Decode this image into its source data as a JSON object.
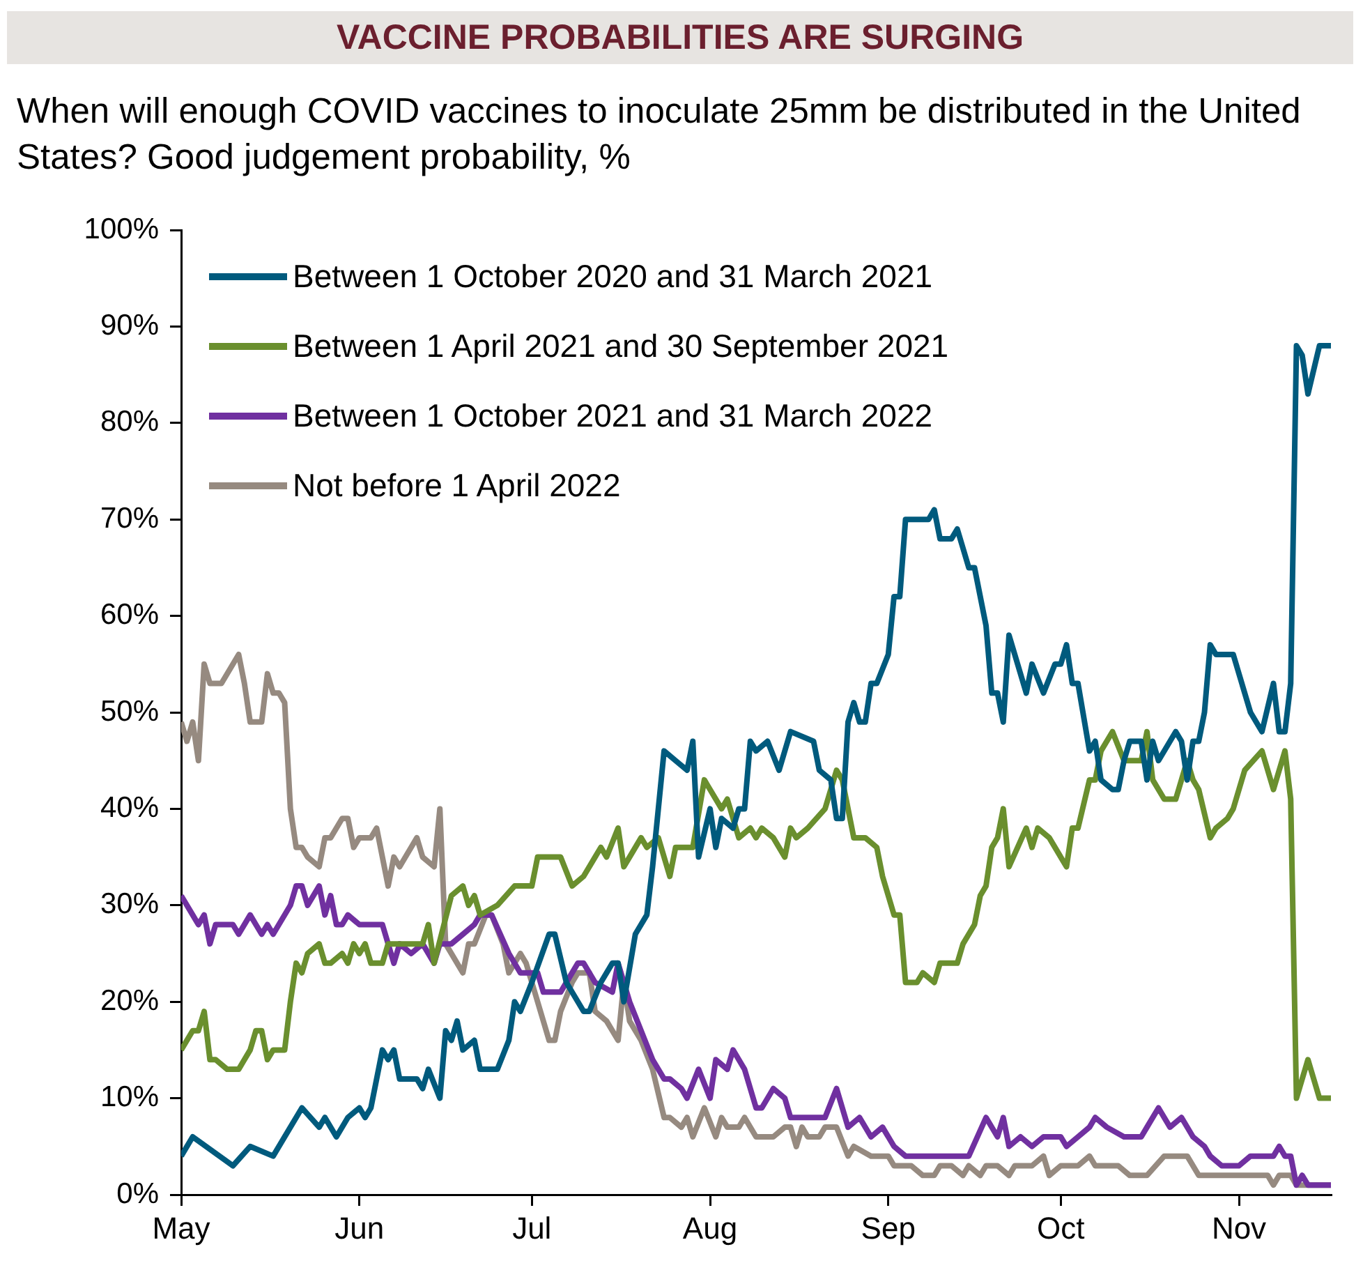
{
  "chart_data": {
    "type": "line",
    "title": "VACCINE PROBABILITIES ARE SURGING",
    "subtitle": "When will enough COVID vaccines to inoculate 25mm be distributed in the United States? Good judgement probability, %",
    "xlim": [
      "2020-05-01",
      "2020-11-17"
    ],
    "xticks": [
      {
        "value": "2020-05-01",
        "label": "May"
      },
      {
        "value": "2020-06-01",
        "label": "Jun"
      },
      {
        "value": "2020-07-01",
        "label": "Jul"
      },
      {
        "value": "2020-08-01",
        "label": "Aug"
      },
      {
        "value": "2020-09-01",
        "label": "Sep"
      },
      {
        "value": "2020-10-01",
        "label": "Oct"
      },
      {
        "value": "2020-11-01",
        "label": "Nov"
      }
    ],
    "ylim": [
      0,
      100
    ],
    "yticks": [
      {
        "value": 0,
        "label": "0%"
      },
      {
        "value": 10,
        "label": "10%"
      },
      {
        "value": 20,
        "label": "20%"
      },
      {
        "value": 30,
        "label": "30%"
      },
      {
        "value": 40,
        "label": "40%"
      },
      {
        "value": 50,
        "label": "50%"
      },
      {
        "value": 60,
        "label": "60%"
      },
      {
        "value": 70,
        "label": "70%"
      },
      {
        "value": 80,
        "label": "80%"
      },
      {
        "value": 90,
        "label": "90%"
      },
      {
        "value": 100,
        "label": "100%"
      }
    ],
    "grid": false,
    "legend": "top left",
    "marker": "none",
    "line_style": "solid",
    "series": [
      {
        "name": "Between 1 October 2020 and 31 March 2021",
        "color": "#005a7d",
        "x": [
          "2020-05-01",
          "2020-05-03",
          "2020-05-10",
          "2020-05-13",
          "2020-05-17",
          "2020-05-20",
          "2020-05-22",
          "2020-05-25",
          "2020-05-26",
          "2020-05-28",
          "2020-05-30",
          "2020-06-01",
          "2020-06-02",
          "2020-06-03",
          "2020-06-05",
          "2020-06-06",
          "2020-06-07",
          "2020-06-08",
          "2020-06-11",
          "2020-06-12",
          "2020-06-13",
          "2020-06-15",
          "2020-06-16",
          "2020-06-17",
          "2020-06-18",
          "2020-06-19",
          "2020-06-21",
          "2020-06-22",
          "2020-06-25",
          "2020-06-27",
          "2020-06-28",
          "2020-06-29",
          "2020-07-01",
          "2020-07-04",
          "2020-07-05",
          "2020-07-07",
          "2020-07-10",
          "2020-07-11",
          "2020-07-13",
          "2020-07-15",
          "2020-07-16",
          "2020-07-17",
          "2020-07-19",
          "2020-07-21",
          "2020-07-22",
          "2020-07-24",
          "2020-07-26",
          "2020-07-28",
          "2020-07-29",
          "2020-07-30",
          "2020-08-01",
          "2020-08-02",
          "2020-08-03",
          "2020-08-05",
          "2020-08-06",
          "2020-08-07",
          "2020-08-08",
          "2020-08-09",
          "2020-08-11",
          "2020-08-13",
          "2020-08-15",
          "2020-08-19",
          "2020-08-20",
          "2020-08-22",
          "2020-08-23",
          "2020-08-24",
          "2020-08-25",
          "2020-08-26",
          "2020-08-27",
          "2020-08-28",
          "2020-08-29",
          "2020-08-30",
          "2020-09-01",
          "2020-09-02",
          "2020-09-03",
          "2020-09-04",
          "2020-09-08",
          "2020-09-09",
          "2020-09-10",
          "2020-09-12",
          "2020-09-13",
          "2020-09-14",
          "2020-09-15",
          "2020-09-16",
          "2020-09-18",
          "2020-09-19",
          "2020-09-20",
          "2020-09-21",
          "2020-09-22",
          "2020-09-25",
          "2020-09-26",
          "2020-09-28",
          "2020-09-30",
          "2020-10-01",
          "2020-10-02",
          "2020-10-03",
          "2020-10-04",
          "2020-10-06",
          "2020-10-07",
          "2020-10-08",
          "2020-10-10",
          "2020-10-11",
          "2020-10-12",
          "2020-10-13",
          "2020-10-15",
          "2020-10-16",
          "2020-10-17",
          "2020-10-18",
          "2020-10-21",
          "2020-10-22",
          "2020-10-23",
          "2020-10-24",
          "2020-10-25",
          "2020-10-26",
          "2020-10-27",
          "2020-10-28",
          "2020-10-31",
          "2020-11-01",
          "2020-11-03",
          "2020-11-05",
          "2020-11-07",
          "2020-11-08",
          "2020-11-09",
          "2020-11-10",
          "2020-11-11",
          "2020-11-12",
          "2020-11-13",
          "2020-11-15",
          "2020-11-17"
        ],
        "values": [
          4,
          6,
          3,
          5,
          4,
          7,
          9,
          7,
          8,
          6,
          8,
          9,
          8,
          9,
          15,
          14,
          15,
          12,
          12,
          11,
          13,
          10,
          17,
          16,
          18,
          15,
          16,
          13,
          13,
          16,
          20,
          19,
          22,
          27,
          27,
          22,
          19,
          19,
          22,
          24,
          24,
          20,
          27,
          29,
          34,
          46,
          45,
          44,
          47,
          35,
          40,
          36,
          39,
          38,
          40,
          40,
          47,
          46,
          47,
          44,
          48,
          47,
          44,
          43,
          39,
          39,
          49,
          51,
          49,
          49,
          53,
          53,
          56,
          62,
          62,
          70,
          70,
          71,
          68,
          68,
          69,
          67,
          65,
          65,
          59,
          52,
          52,
          49,
          58,
          52,
          55,
          52,
          55,
          55,
          57,
          53,
          53,
          46,
          47,
          43,
          42,
          42,
          45,
          47,
          47,
          43,
          47,
          45,
          48,
          47,
          43,
          47,
          47,
          50,
          57,
          56,
          56,
          54,
          50,
          48,
          53,
          48,
          48,
          53,
          88,
          87,
          83,
          88,
          88
        ]
      },
      {
        "name": "Between 1 April 2021 and 30 September 2021",
        "color": "#6a8f2e",
        "x": [
          "2020-05-01",
          "2020-05-03",
          "2020-05-04",
          "2020-05-05",
          "2020-05-06",
          "2020-05-07",
          "2020-05-09",
          "2020-05-11",
          "2020-05-13",
          "2020-05-14",
          "2020-05-15",
          "2020-05-16",
          "2020-05-17",
          "2020-05-19",
          "2020-05-20",
          "2020-05-21",
          "2020-05-22",
          "2020-05-23",
          "2020-05-25",
          "2020-05-26",
          "2020-05-27",
          "2020-05-29",
          "2020-05-30",
          "2020-05-31",
          "2020-06-01",
          "2020-06-02",
          "2020-06-03",
          "2020-06-05",
          "2020-06-06",
          "2020-06-08",
          "2020-06-09",
          "2020-06-11",
          "2020-06-12",
          "2020-06-13",
          "2020-06-14",
          "2020-06-17",
          "2020-06-19",
          "2020-06-20",
          "2020-06-21",
          "2020-06-22",
          "2020-06-25",
          "2020-06-28",
          "2020-07-01",
          "2020-07-02",
          "2020-07-06",
          "2020-07-08",
          "2020-07-10",
          "2020-07-12",
          "2020-07-13",
          "2020-07-14",
          "2020-07-16",
          "2020-07-17",
          "2020-07-18",
          "2020-07-20",
          "2020-07-21",
          "2020-07-23",
          "2020-07-25",
          "2020-07-26",
          "2020-07-29",
          "2020-07-31",
          "2020-08-01",
          "2020-08-03",
          "2020-08-04",
          "2020-08-06",
          "2020-08-08",
          "2020-08-09",
          "2020-08-10",
          "2020-08-12",
          "2020-08-14",
          "2020-08-15",
          "2020-08-16",
          "2020-08-18",
          "2020-08-21",
          "2020-08-23",
          "2020-08-24",
          "2020-08-25",
          "2020-08-26",
          "2020-08-28",
          "2020-08-30",
          "2020-08-31",
          "2020-09-02",
          "2020-09-03",
          "2020-09-04",
          "2020-09-06",
          "2020-09-07",
          "2020-09-09",
          "2020-09-10",
          "2020-09-13",
          "2020-09-14",
          "2020-09-16",
          "2020-09-17",
          "2020-09-18",
          "2020-09-19",
          "2020-09-20",
          "2020-09-21",
          "2020-09-22",
          "2020-09-25",
          "2020-09-26",
          "2020-09-27",
          "2020-09-29",
          "2020-10-02",
          "2020-10-03",
          "2020-10-04",
          "2020-10-06",
          "2020-10-07",
          "2020-10-08",
          "2020-10-10",
          "2020-10-12",
          "2020-10-15",
          "2020-10-16",
          "2020-10-17",
          "2020-10-19",
          "2020-10-21",
          "2020-10-22",
          "2020-10-23",
          "2020-10-24",
          "2020-10-25",
          "2020-10-27",
          "2020-10-28",
          "2020-10-30",
          "2020-10-31",
          "2020-11-02",
          "2020-11-05",
          "2020-11-07",
          "2020-11-09",
          "2020-11-10",
          "2020-11-11",
          "2020-11-13",
          "2020-11-15",
          "2020-11-17"
        ],
        "values": [
          15,
          17,
          17,
          19,
          14,
          14,
          13,
          13,
          15,
          17,
          17,
          14,
          15,
          15,
          20,
          24,
          23,
          25,
          26,
          24,
          24,
          25,
          24,
          26,
          25,
          26,
          24,
          24,
          26,
          26,
          26,
          26,
          26,
          28,
          24,
          31,
          32,
          30,
          31,
          29,
          30,
          32,
          32,
          35,
          35,
          32,
          33,
          35,
          36,
          35,
          38,
          34,
          35,
          37,
          36,
          37,
          33,
          36,
          36,
          43,
          42,
          40,
          41,
          37,
          38,
          37,
          38,
          37,
          35,
          38,
          37,
          38,
          40,
          44,
          43,
          40,
          37,
          37,
          36,
          33,
          29,
          29,
          22,
          22,
          23,
          22,
          24,
          24,
          26,
          28,
          31,
          32,
          36,
          37,
          40,
          34,
          38,
          36,
          38,
          37,
          34,
          38,
          38,
          43,
          43,
          46,
          48,
          45,
          45,
          48,
          43,
          41,
          41,
          43,
          45,
          43,
          42,
          37,
          38,
          39,
          40,
          44,
          46,
          42,
          46,
          41,
          10,
          14,
          10,
          10
        ]
      },
      {
        "name": "Between 1 October 2021 and 31 March 2022",
        "color": "#7030a0",
        "x": [
          "2020-05-01",
          "2020-05-03",
          "2020-05-04",
          "2020-05-05",
          "2020-05-06",
          "2020-05-07",
          "2020-05-10",
          "2020-05-11",
          "2020-05-13",
          "2020-05-14",
          "2020-05-15",
          "2020-05-16",
          "2020-05-17",
          "2020-05-20",
          "2020-05-21",
          "2020-05-22",
          "2020-05-23",
          "2020-05-25",
          "2020-05-26",
          "2020-05-27",
          "2020-05-28",
          "2020-05-29",
          "2020-05-30",
          "2020-06-01",
          "2020-06-05",
          "2020-06-06",
          "2020-06-07",
          "2020-06-08",
          "2020-06-10",
          "2020-06-12",
          "2020-06-14",
          "2020-06-15",
          "2020-06-17",
          "2020-06-19",
          "2020-06-21",
          "2020-06-22",
          "2020-06-24",
          "2020-06-27",
          "2020-06-29",
          "2020-07-02",
          "2020-07-03",
          "2020-07-06",
          "2020-07-09",
          "2020-07-10",
          "2020-07-12",
          "2020-07-15",
          "2020-07-16",
          "2020-07-18",
          "2020-07-20",
          "2020-07-22",
          "2020-07-24",
          "2020-07-25",
          "2020-07-27",
          "2020-07-28",
          "2020-07-30",
          "2020-08-01",
          "2020-08-02",
          "2020-08-04",
          "2020-08-05",
          "2020-08-07",
          "2020-08-09",
          "2020-08-10",
          "2020-08-12",
          "2020-08-14",
          "2020-08-15",
          "2020-08-21",
          "2020-08-23",
          "2020-08-25",
          "2020-08-27",
          "2020-08-29",
          "2020-08-31",
          "2020-09-02",
          "2020-09-04",
          "2020-09-12",
          "2020-09-15",
          "2020-09-18",
          "2020-09-20",
          "2020-09-21",
          "2020-09-22",
          "2020-09-24",
          "2020-09-26",
          "2020-09-28",
          "2020-10-01",
          "2020-10-02",
          "2020-10-04",
          "2020-10-06",
          "2020-10-07",
          "2020-10-09",
          "2020-10-12",
          "2020-10-15",
          "2020-10-16",
          "2020-10-18",
          "2020-10-20",
          "2020-10-22",
          "2020-10-24",
          "2020-10-26",
          "2020-10-27",
          "2020-10-29",
          "2020-11-01",
          "2020-11-03",
          "2020-11-07",
          "2020-11-08",
          "2020-11-09",
          "2020-11-10",
          "2020-11-11",
          "2020-11-12",
          "2020-11-13",
          "2020-11-17"
        ],
        "values": [
          31,
          29,
          28,
          29,
          26,
          28,
          28,
          27,
          29,
          28,
          27,
          28,
          27,
          30,
          32,
          32,
          30,
          32,
          29,
          31,
          28,
          28,
          29,
          28,
          28,
          26,
          24,
          26,
          25,
          26,
          24,
          26,
          26,
          27,
          28,
          29,
          29,
          25,
          23,
          23,
          21,
          21,
          24,
          24,
          22,
          21,
          24,
          20,
          17,
          14,
          12,
          12,
          11,
          10,
          13,
          10,
          14,
          13,
          15,
          13,
          9,
          9,
          11,
          10,
          8,
          8,
          11,
          7,
          8,
          6,
          7,
          5,
          4,
          4,
          4,
          8,
          6,
          8,
          5,
          6,
          5,
          6,
          6,
          5,
          6,
          7,
          8,
          7,
          6,
          6,
          7,
          9,
          7,
          8,
          6,
          5,
          4,
          3,
          3,
          4,
          4,
          5,
          4,
          4,
          1,
          2,
          1,
          1
        ]
      },
      {
        "name": "Not before 1 April 2022",
        "color": "#968a80",
        "x": [
          "2020-05-01",
          "2020-05-02",
          "2020-05-03",
          "2020-05-04",
          "2020-05-05",
          "2020-05-06",
          "2020-05-08",
          "2020-05-11",
          "2020-05-12",
          "2020-05-13",
          "2020-05-14",
          "2020-05-15",
          "2020-05-16",
          "2020-05-17",
          "2020-05-18",
          "2020-05-19",
          "2020-05-20",
          "2020-05-21",
          "2020-05-22",
          "2020-05-23",
          "2020-05-25",
          "2020-05-26",
          "2020-05-27",
          "2020-05-29",
          "2020-05-30",
          "2020-05-31",
          "2020-06-01",
          "2020-06-03",
          "2020-06-04",
          "2020-06-06",
          "2020-06-07",
          "2020-06-08",
          "2020-06-10",
          "2020-06-11",
          "2020-06-12",
          "2020-06-14",
          "2020-06-15",
          "2020-06-16",
          "2020-06-19",
          "2020-06-20",
          "2020-06-21",
          "2020-06-23",
          "2020-06-24",
          "2020-06-26",
          "2020-06-27",
          "2020-06-29",
          "2020-06-30",
          "2020-07-01",
          "2020-07-04",
          "2020-07-05",
          "2020-07-06",
          "2020-07-08",
          "2020-07-09",
          "2020-07-11",
          "2020-07-12",
          "2020-07-14",
          "2020-07-16",
          "2020-07-17",
          "2020-07-18",
          "2020-07-20",
          "2020-07-22",
          "2020-07-24",
          "2020-07-25",
          "2020-07-27",
          "2020-07-28",
          "2020-07-29",
          "2020-07-31",
          "2020-08-02",
          "2020-08-03",
          "2020-08-04",
          "2020-08-06",
          "2020-08-07",
          "2020-08-09",
          "2020-08-12",
          "2020-08-14",
          "2020-08-15",
          "2020-08-16",
          "2020-08-17",
          "2020-08-18",
          "2020-08-20",
          "2020-08-21",
          "2020-08-23",
          "2020-08-25",
          "2020-08-26",
          "2020-08-29",
          "2020-09-01",
          "2020-09-02",
          "2020-09-05",
          "2020-09-07",
          "2020-09-09",
          "2020-09-10",
          "2020-09-12",
          "2020-09-14",
          "2020-09-15",
          "2020-09-17",
          "2020-09-18",
          "2020-09-20",
          "2020-09-22",
          "2020-09-23",
          "2020-09-26",
          "2020-09-28",
          "2020-09-29",
          "2020-10-01",
          "2020-10-04",
          "2020-10-06",
          "2020-10-07",
          "2020-10-11",
          "2020-10-13",
          "2020-10-16",
          "2020-10-19",
          "2020-10-23",
          "2020-10-25",
          "2020-11-06",
          "2020-11-07",
          "2020-11-08",
          "2020-11-10",
          "2020-11-11",
          "2020-11-17"
        ],
        "values": [
          49,
          47,
          49,
          45,
          55,
          53,
          53,
          56,
          53,
          49,
          49,
          49,
          54,
          52,
          52,
          51,
          40,
          36,
          36,
          35,
          34,
          37,
          37,
          39,
          39,
          36,
          37,
          37,
          38,
          32,
          35,
          34,
          36,
          37,
          35,
          34,
          40,
          26,
          23,
          26,
          26,
          29,
          29,
          26,
          23,
          25,
          24,
          22,
          16,
          16,
          19,
          22,
          23,
          23,
          19,
          18,
          16,
          22,
          18,
          16,
          13,
          8,
          8,
          7,
          8,
          6,
          9,
          6,
          8,
          7,
          7,
          8,
          6,
          6,
          7,
          7,
          5,
          7,
          6,
          6,
          7,
          7,
          4,
          5,
          4,
          4,
          3,
          3,
          2,
          2,
          3,
          3,
          2,
          3,
          2,
          3,
          3,
          2,
          3,
          3,
          4,
          2,
          3,
          3,
          4,
          3,
          3,
          2,
          2,
          4,
          4,
          2,
          2,
          1,
          2,
          2,
          1,
          1
        ]
      }
    ]
  }
}
